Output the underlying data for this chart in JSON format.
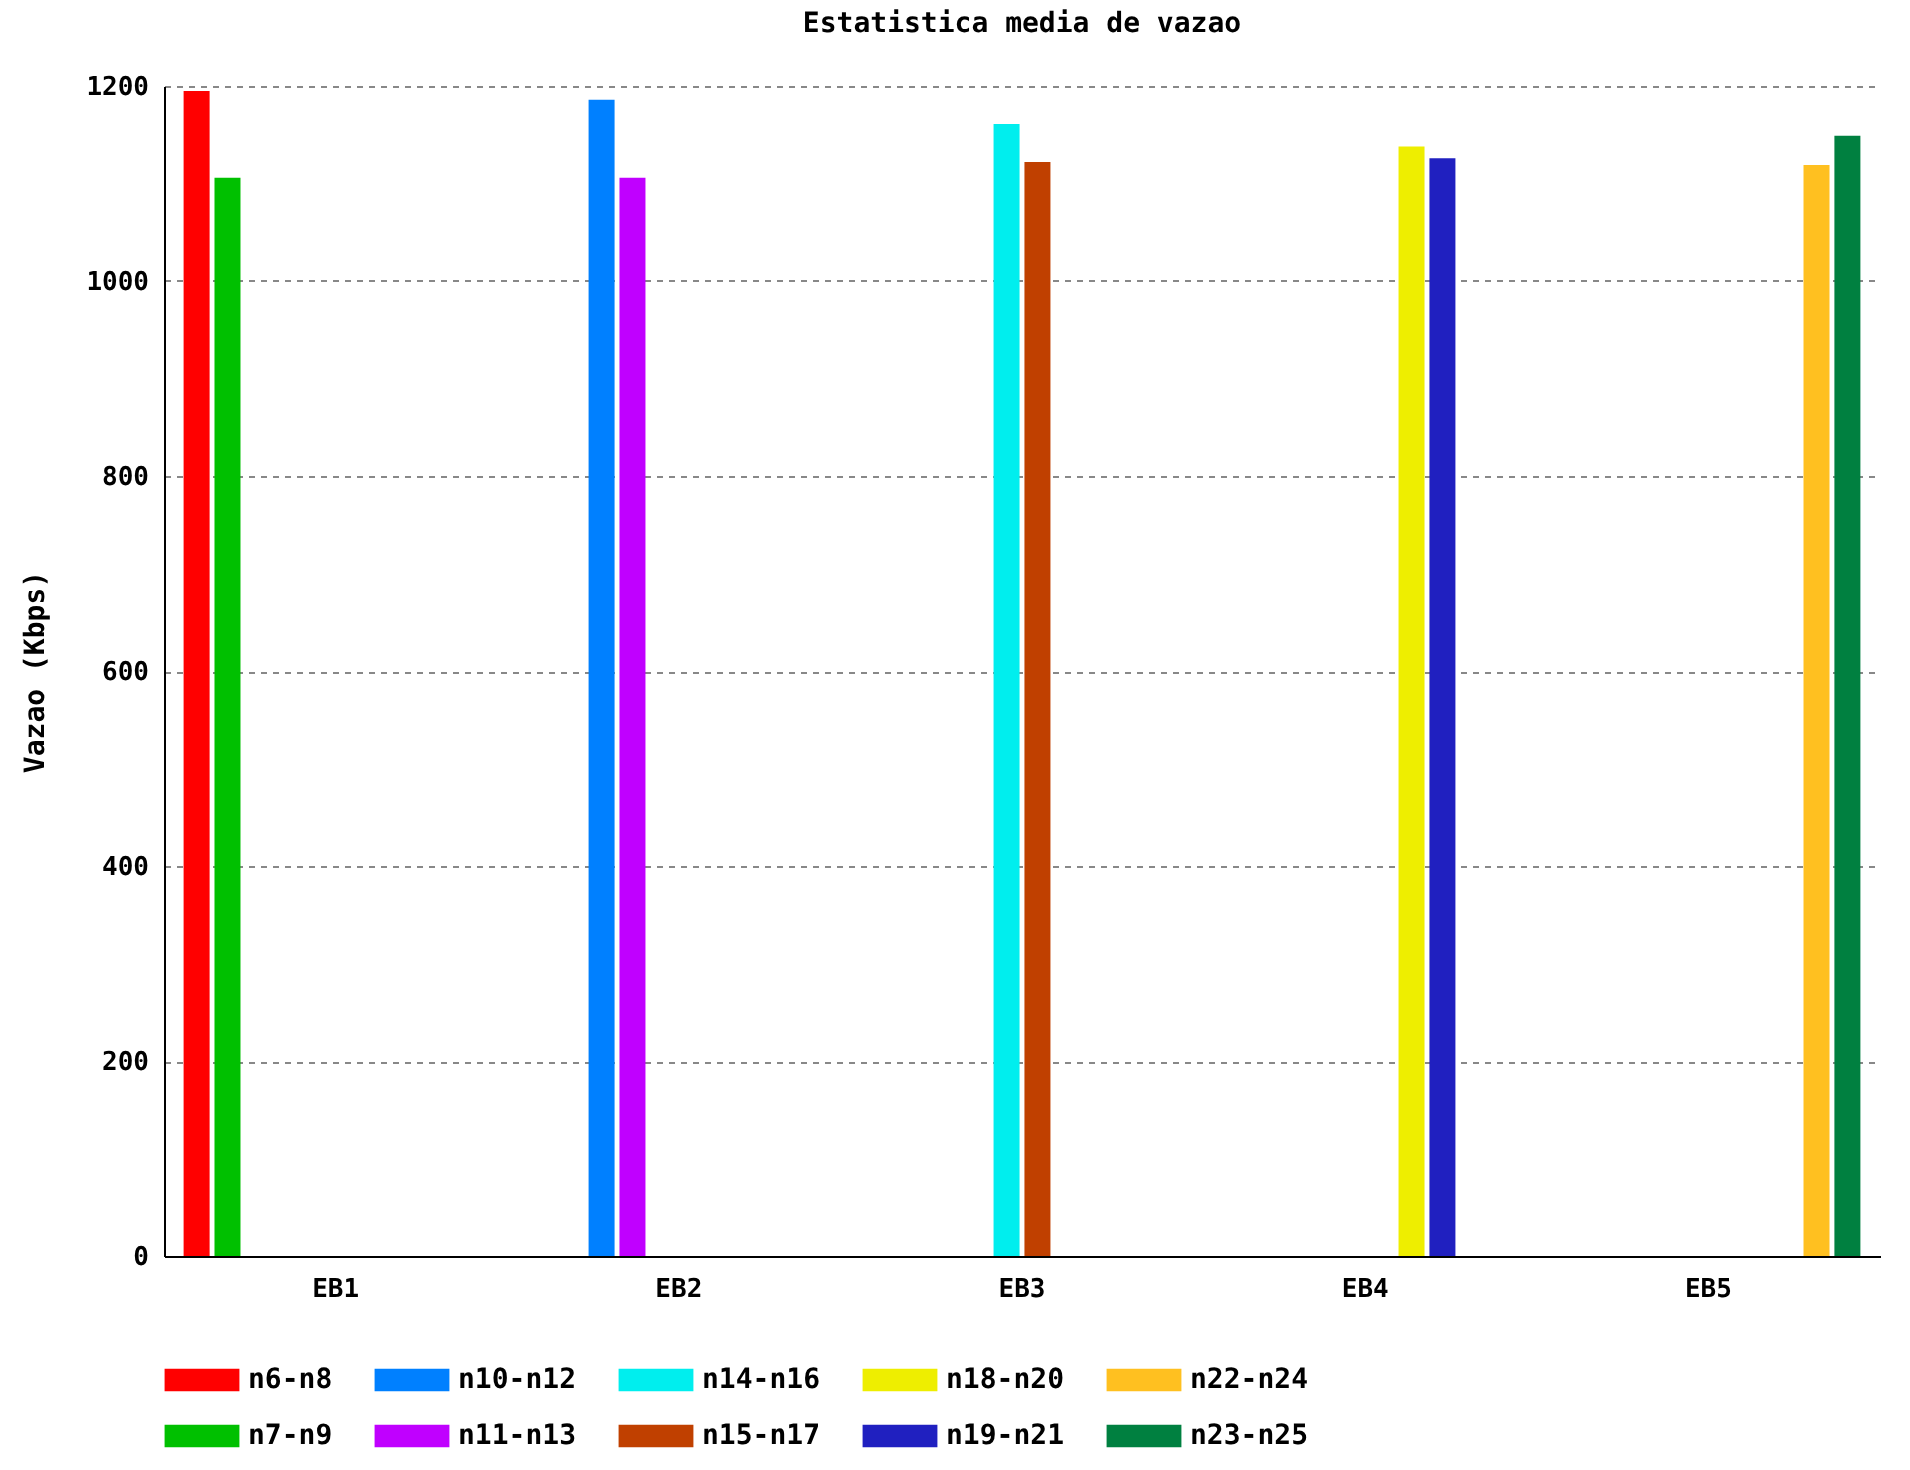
{
  "chart_data": {
    "type": "bar",
    "title": "Estatistica media de vazao",
    "ylabel": "Vazao (Kbps)",
    "categories": [
      "EB1",
      "EB2",
      "EB3",
      "EB4",
      "EB5"
    ],
    "series": [
      {
        "name": "n6-n8",
        "color": "#ff0000",
        "values": [
          1195,
          null,
          null,
          null,
          null
        ]
      },
      {
        "name": "n7-n9",
        "color": "#00c000",
        "values": [
          1106,
          null,
          null,
          null,
          null
        ]
      },
      {
        "name": "n10-n12",
        "color": "#0080ff",
        "values": [
          null,
          1186,
          null,
          null,
          null
        ]
      },
      {
        "name": "n11-n13",
        "color": "#c000ff",
        "values": [
          null,
          1106,
          null,
          null,
          null
        ]
      },
      {
        "name": "n14-n16",
        "color": "#00eeee",
        "values": [
          null,
          null,
          1161,
          null,
          null
        ]
      },
      {
        "name": "n15-n17",
        "color": "#c04000",
        "values": [
          null,
          null,
          1122,
          null,
          null
        ]
      },
      {
        "name": "n18-n20",
        "color": "#eeee00",
        "values": [
          null,
          null,
          null,
          1138,
          null
        ]
      },
      {
        "name": "n19-n21",
        "color": "#2020c0",
        "values": [
          null,
          null,
          null,
          1126,
          null
        ]
      },
      {
        "name": "n22-n24",
        "color": "#ffc020",
        "values": [
          null,
          null,
          null,
          null,
          1119
        ]
      },
      {
        "name": "n23-n25",
        "color": "#008040",
        "values": [
          null,
          null,
          null,
          null,
          1149
        ]
      }
    ],
    "ylim": [
      0,
      1200
    ],
    "yticks": [
      0,
      200,
      400,
      600,
      800,
      1000,
      1200
    ],
    "grid": "y",
    "legend": "bottom"
  }
}
